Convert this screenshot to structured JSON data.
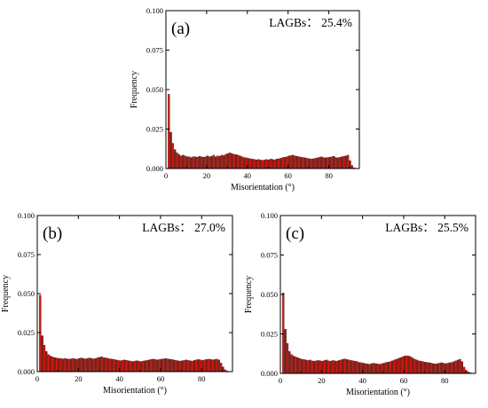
{
  "chart_data": [
    {
      "type": "bar",
      "panel_label": "(a)",
      "annotation": "LAGBs： 25.4%",
      "xlabel": "Misorientation (°)",
      "ylabel": "Frequency",
      "xlim": [
        0,
        95
      ],
      "ylim": [
        0,
        0.1
      ],
      "xticks": [
        0,
        20,
        40,
        60,
        80
      ],
      "xtick_labels": [
        "0",
        "20",
        "40",
        "60",
        "80"
      ],
      "yticks": [
        0,
        0.025,
        0.05,
        0.075,
        0.1
      ],
      "ytick_labels": [
        "0.000",
        "0.025",
        "0.050",
        "0.075",
        "0.100"
      ],
      "bin_width": 1,
      "x": [
        2,
        3,
        4,
        5,
        6,
        7,
        8,
        9,
        10,
        11,
        12,
        13,
        14,
        15,
        16,
        17,
        18,
        19,
        20,
        21,
        22,
        23,
        24,
        25,
        26,
        27,
        28,
        29,
        30,
        31,
        32,
        33,
        34,
        35,
        36,
        37,
        38,
        39,
        40,
        41,
        42,
        43,
        44,
        45,
        46,
        47,
        48,
        49,
        50,
        51,
        52,
        53,
        54,
        55,
        56,
        57,
        58,
        59,
        60,
        61,
        62,
        63,
        64,
        65,
        66,
        67,
        68,
        69,
        70,
        71,
        72,
        73,
        74,
        75,
        76,
        77,
        78,
        79,
        80,
        81,
        82,
        83,
        84,
        85,
        86,
        87,
        88,
        89,
        90,
        91,
        92,
        93
      ],
      "values": [
        0.047,
        0.023,
        0.016,
        0.012,
        0.01,
        0.009,
        0.008,
        0.0085,
        0.008,
        0.0075,
        0.0075,
        0.007,
        0.0075,
        0.0075,
        0.0072,
        0.0078,
        0.0075,
        0.0072,
        0.0075,
        0.008,
        0.0075,
        0.0078,
        0.0085,
        0.0075,
        0.008,
        0.0078,
        0.0085,
        0.0082,
        0.009,
        0.0095,
        0.01,
        0.0095,
        0.009,
        0.0088,
        0.0085,
        0.008,
        0.0075,
        0.007,
        0.0068,
        0.0065,
        0.0062,
        0.006,
        0.0058,
        0.0055,
        0.0058,
        0.0055,
        0.0052,
        0.0055,
        0.0058,
        0.0055,
        0.006,
        0.0058,
        0.0055,
        0.006,
        0.0062,
        0.0065,
        0.007,
        0.0072,
        0.0075,
        0.008,
        0.0082,
        0.0085,
        0.008,
        0.0078,
        0.0075,
        0.0072,
        0.007,
        0.0068,
        0.0065,
        0.0062,
        0.006,
        0.0062,
        0.0065,
        0.0068,
        0.0072,
        0.0075,
        0.007,
        0.0068,
        0.007,
        0.0072,
        0.0075,
        0.0078,
        0.007,
        0.0068,
        0.0072,
        0.0075,
        0.0078,
        0.008,
        0.0085,
        0.005,
        0.002,
        0.0005
      ]
    },
    {
      "type": "bar",
      "panel_label": "(b)",
      "annotation": "LAGBs： 27.0%",
      "xlabel": "Misorientation (°)",
      "ylabel": "Frequency",
      "xlim": [
        0,
        95
      ],
      "ylim": [
        0,
        0.1
      ],
      "xticks": [
        0,
        20,
        40,
        60,
        80
      ],
      "xtick_labels": [
        "0",
        "20",
        "40",
        "60",
        "80"
      ],
      "yticks": [
        0,
        0.025,
        0.05,
        0.075,
        0.1
      ],
      "ytick_labels": [
        "0.000",
        "0.025",
        "0.050",
        "0.075",
        "0.100"
      ],
      "bin_width": 1,
      "x": [
        2,
        3,
        4,
        5,
        6,
        7,
        8,
        9,
        10,
        11,
        12,
        13,
        14,
        15,
        16,
        17,
        18,
        19,
        20,
        21,
        22,
        23,
        24,
        25,
        26,
        27,
        28,
        29,
        30,
        31,
        32,
        33,
        34,
        35,
        36,
        37,
        38,
        39,
        40,
        41,
        42,
        43,
        44,
        45,
        46,
        47,
        48,
        49,
        50,
        51,
        52,
        53,
        54,
        55,
        56,
        57,
        58,
        59,
        60,
        61,
        62,
        63,
        64,
        65,
        66,
        67,
        68,
        69,
        70,
        71,
        72,
        73,
        74,
        75,
        76,
        77,
        78,
        79,
        80,
        81,
        82,
        83,
        84,
        85,
        86,
        87,
        88,
        89,
        90,
        91,
        92,
        93
      ],
      "values": [
        0.049,
        0.023,
        0.017,
        0.013,
        0.011,
        0.01,
        0.0095,
        0.009,
        0.0088,
        0.0085,
        0.0085,
        0.0082,
        0.0085,
        0.0082,
        0.008,
        0.0082,
        0.0085,
        0.0082,
        0.008,
        0.0085,
        0.0088,
        0.0085,
        0.0082,
        0.0085,
        0.0088,
        0.0085,
        0.0082,
        0.0085,
        0.009,
        0.0092,
        0.0095,
        0.009,
        0.0088,
        0.0085,
        0.0082,
        0.008,
        0.0078,
        0.0075,
        0.0072,
        0.007,
        0.0072,
        0.0075,
        0.0072,
        0.007,
        0.0068,
        0.0065,
        0.0068,
        0.007,
        0.0068,
        0.0065,
        0.0068,
        0.007,
        0.0072,
        0.0075,
        0.0078,
        0.008,
        0.0078,
        0.0075,
        0.0078,
        0.008,
        0.0082,
        0.0085,
        0.0082,
        0.008,
        0.0078,
        0.0075,
        0.0072,
        0.007,
        0.0068,
        0.007,
        0.0072,
        0.0075,
        0.0072,
        0.007,
        0.0068,
        0.0072,
        0.0075,
        0.0078,
        0.0075,
        0.0072,
        0.0075,
        0.0078,
        0.008,
        0.0078,
        0.0075,
        0.0078,
        0.008,
        0.0075,
        0.0055,
        0.003,
        0.0012,
        0.0005
      ]
    },
    {
      "type": "bar",
      "panel_label": "(c)",
      "annotation": "LAGBs： 25.5%",
      "xlabel": "Misorientation (°)",
      "ylabel": "Frequency",
      "xlim": [
        0,
        95
      ],
      "ylim": [
        0,
        0.1
      ],
      "xticks": [
        0,
        20,
        40,
        60,
        80
      ],
      "xtick_labels": [
        "0",
        "20",
        "40",
        "60",
        "80"
      ],
      "yticks": [
        0,
        0.025,
        0.05,
        0.075,
        0.1
      ],
      "ytick_labels": [
        "0.000",
        "0.025",
        "0.050",
        "0.075",
        "0.100"
      ],
      "bin_width": 1,
      "x": [
        2,
        3,
        4,
        5,
        6,
        7,
        8,
        9,
        10,
        11,
        12,
        13,
        14,
        15,
        16,
        17,
        18,
        19,
        20,
        21,
        22,
        23,
        24,
        25,
        26,
        27,
        28,
        29,
        30,
        31,
        32,
        33,
        34,
        35,
        36,
        37,
        38,
        39,
        40,
        41,
        42,
        43,
        44,
        45,
        46,
        47,
        48,
        49,
        50,
        51,
        52,
        53,
        54,
        55,
        56,
        57,
        58,
        59,
        60,
        61,
        62,
        63,
        64,
        65,
        66,
        67,
        68,
        69,
        70,
        71,
        72,
        73,
        74,
        75,
        76,
        77,
        78,
        79,
        80,
        81,
        82,
        83,
        84,
        85,
        86,
        87,
        88,
        89,
        90,
        91,
        92,
        93
      ],
      "values": [
        0.051,
        0.028,
        0.019,
        0.014,
        0.012,
        0.011,
        0.0105,
        0.01,
        0.0095,
        0.009,
        0.0088,
        0.0085,
        0.0082,
        0.0085,
        0.008,
        0.0078,
        0.008,
        0.0082,
        0.008,
        0.0078,
        0.0082,
        0.0085,
        0.008,
        0.0078,
        0.0082,
        0.008,
        0.0078,
        0.0082,
        0.0085,
        0.009,
        0.0092,
        0.0088,
        0.0085,
        0.0082,
        0.008,
        0.0078,
        0.0075,
        0.007,
        0.0068,
        0.0065,
        0.0062,
        0.006,
        0.0058,
        0.0062,
        0.0065,
        0.0062,
        0.006,
        0.0058,
        0.0062,
        0.0065,
        0.007,
        0.0072,
        0.0075,
        0.008,
        0.0085,
        0.009,
        0.0095,
        0.01,
        0.0105,
        0.011,
        0.0112,
        0.011,
        0.0105,
        0.0098,
        0.009,
        0.0085,
        0.008,
        0.0078,
        0.0075,
        0.0072,
        0.007,
        0.0068,
        0.0065,
        0.0062,
        0.006,
        0.0062,
        0.0065,
        0.0068,
        0.0065,
        0.0062,
        0.0065,
        0.0068,
        0.007,
        0.0075,
        0.008,
        0.0085,
        0.009,
        0.0075,
        0.004,
        0.002,
        0.001,
        0.0005
      ]
    }
  ]
}
